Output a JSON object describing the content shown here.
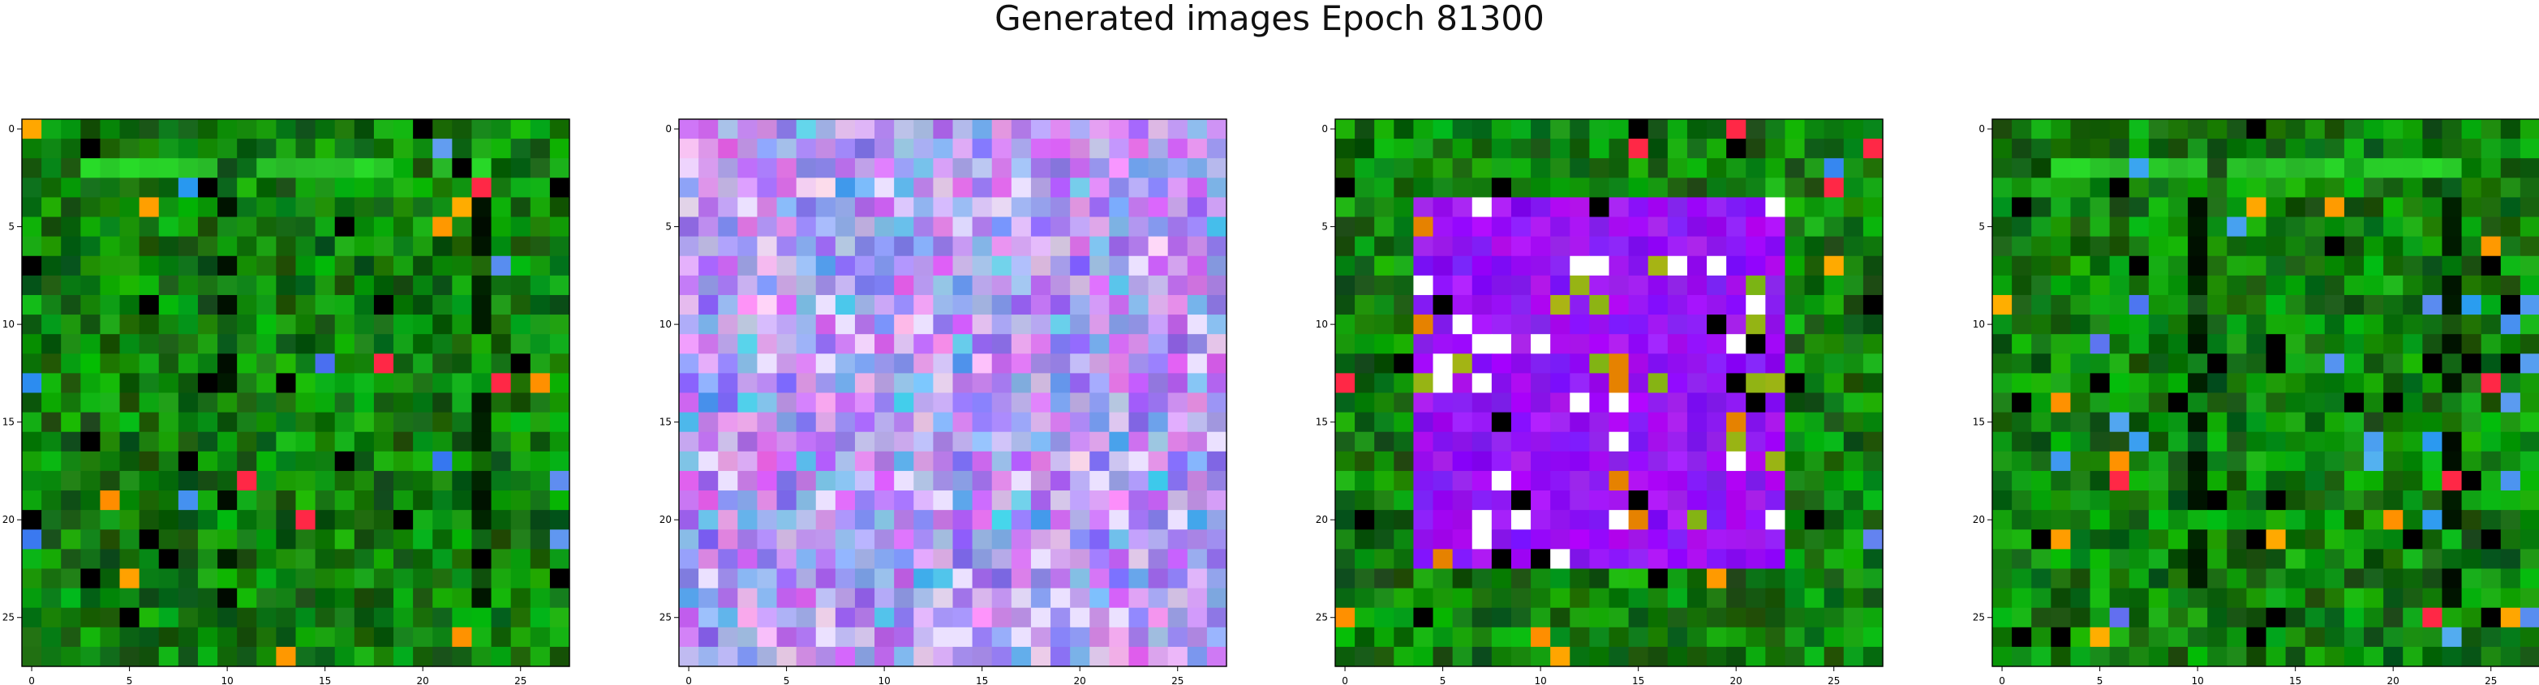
{
  "title": "Generated images Epoch 81300",
  "chart_data": {
    "type": "heatmap",
    "title": "Generated images Epoch 81300",
    "grid_size": 28,
    "xlim": [
      0,
      27
    ],
    "ylim": [
      27,
      0
    ],
    "x_ticks": [
      "0",
      "5",
      "10",
      "15",
      "20",
      "25"
    ],
    "y_ticks": [
      "0",
      "5",
      "10",
      "15",
      "20",
      "25"
    ],
    "panels": [
      {
        "palette": "green",
        "description_colors": [
          "#0a6e0a",
          "#118a11",
          "#23a023",
          "#0c5a0c",
          "#000000",
          "#ff8c00",
          "#2050ff"
        ]
      },
      {
        "palette": "violet",
        "description_colors": [
          "#b48cf0",
          "#9c6ff5",
          "#d6b8ff",
          "#7f5cff",
          "#e0e0ff",
          "#ff6fd0",
          "#40a0f0"
        ]
      },
      {
        "palette": "green-violet-frame",
        "description_colors": [
          "#0f7a0f",
          "#8c14ff",
          "#a64dff",
          "#ffffff",
          "#ff8c00"
        ]
      },
      {
        "palette": "green",
        "description_colors": [
          "#0a6e0a",
          "#118a11",
          "#23a023",
          "#000000",
          "#ff8c00",
          "#ff2a4a"
        ]
      }
    ]
  }
}
